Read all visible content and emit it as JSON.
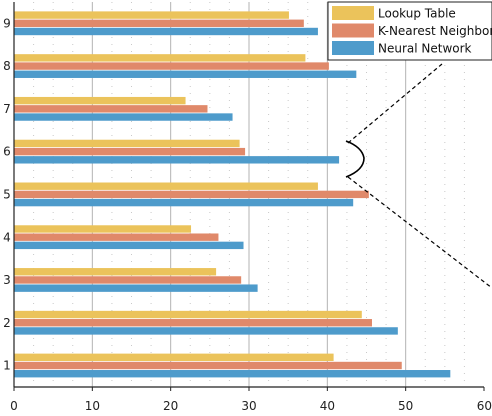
{
  "chart_data": {
    "type": "bar",
    "orientation": "horizontal",
    "categories": [
      "1",
      "2",
      "3",
      "4",
      "5",
      "6",
      "7",
      "8",
      "9"
    ],
    "series": [
      {
        "name": "Lookup Table",
        "color": "#EBC35B",
        "values": [
          40.8,
          44.4,
          25.8,
          22.6,
          38.8,
          28.8,
          21.9,
          37.2,
          35.1
        ]
      },
      {
        "name": "K-Nearest Neighbors",
        "color": "#E0896A",
        "values": [
          49.5,
          45.7,
          29.0,
          26.1,
          45.3,
          29.5,
          24.7,
          40.2,
          37.0
        ]
      },
      {
        "name": "Neural Network",
        "color": "#4E9BCB",
        "values": [
          55.7,
          49.0,
          31.1,
          29.3,
          43.3,
          41.5,
          27.9,
          43.7,
          38.8
        ]
      }
    ],
    "x_ticks": [
      "0",
      "10",
      "20",
      "30",
      "40",
      "50",
      "60"
    ],
    "xlim": [
      0,
      60
    ],
    "grid": "vertical",
    "legend_position": "top-right",
    "title": "",
    "xlabel": "",
    "ylabel": ""
  }
}
